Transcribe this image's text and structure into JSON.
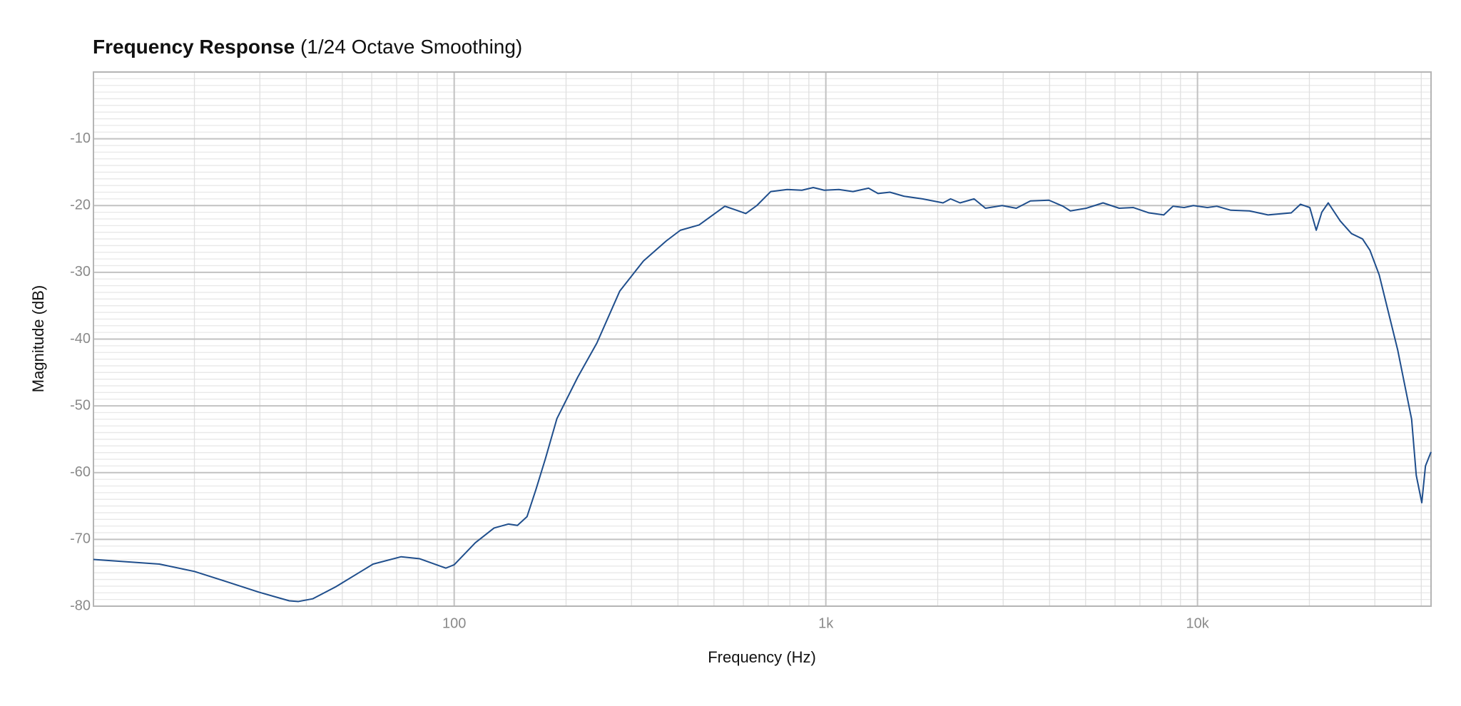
{
  "chart_data": {
    "type": "line",
    "title": "Frequency Response",
    "subtitle": "(1/24 Octave Smoothing)",
    "x_label": "Frequency (Hz)",
    "y_label": "Magnitude (dB)",
    "x_scale": "log",
    "grid": true,
    "minor_grid": true,
    "xlim": [
      10.7,
      42500
    ],
    "ylim": [
      -80,
      0
    ],
    "xticks": [
      100,
      {
        "value": 1000,
        "label": "1k"
      },
      {
        "value": 10000,
        "label": "10k"
      }
    ],
    "yticks": [
      -80,
      -70,
      -60,
      -50,
      -40,
      -30,
      -20,
      -10
    ],
    "x": [
      10.7,
      16.1,
      20,
      24,
      29.8,
      36,
      38.1,
      41.6,
      48,
      60.5,
      72,
      80.8,
      95,
      100,
      114,
      128,
      140,
      148,
      157,
      166,
      176,
      189,
      215,
      242,
      279,
      323,
      372,
      406,
      456,
      497,
      535,
      575,
      609,
      652,
      711,
      787,
      862,
      925,
      990,
      1084,
      1183,
      1303,
      1382,
      1487,
      1622,
      1820,
      2067,
      2166,
      2297,
      2505,
      2688,
      2981,
      3254,
      3552,
      3984,
      4346,
      4550,
      5019,
      5570,
      6158,
      6720,
      7406,
      8114,
      8593,
      9206,
      9747,
      10630,
      11270,
      12290,
      13800,
      15480,
      17870,
      18930,
      20050,
      20870,
      21600,
      22480,
      24210,
      25960,
      27800,
      29110,
      30830,
      34560,
      37680,
      38780,
      40130,
      41060,
      42500
    ],
    "series": [
      {
        "name": "Magnitude",
        "color": "#1f4e8c",
        "values": [
          -73.0,
          -73.7,
          -74.8,
          -76.2,
          -77.9,
          -79.2,
          -79.3,
          -78.9,
          -77.1,
          -73.7,
          -72.6,
          -72.9,
          -74.3,
          -73.8,
          -70.5,
          -68.3,
          -67.7,
          -67.9,
          -66.6,
          -62.5,
          -57.9,
          -51.9,
          -45.7,
          -40.6,
          -32.8,
          -28.3,
          -25.3,
          -23.7,
          -22.9,
          -21.4,
          -20.1,
          -20.7,
          -21.2,
          -20.0,
          -17.9,
          -17.6,
          -17.7,
          -17.3,
          -17.7,
          -17.6,
          -17.9,
          -17.4,
          -18.2,
          -18.0,
          -18.6,
          -19.0,
          -19.6,
          -19.0,
          -19.6,
          -19.0,
          -20.4,
          -20.0,
          -20.4,
          -19.3,
          -19.2,
          -20.1,
          -20.8,
          -20.4,
          -19.6,
          -20.4,
          -20.3,
          -21.1,
          -21.4,
          -20.1,
          -20.3,
          -20.0,
          -20.3,
          -20.1,
          -20.7,
          -20.8,
          -21.4,
          -21.1,
          -19.8,
          -20.3,
          -23.7,
          -21.0,
          -19.6,
          -22.3,
          -24.2,
          -25.0,
          -26.7,
          -30.4,
          -41.6,
          -52.0,
          -60.4,
          -64.5,
          -59.0,
          -56.9
        ]
      }
    ]
  }
}
